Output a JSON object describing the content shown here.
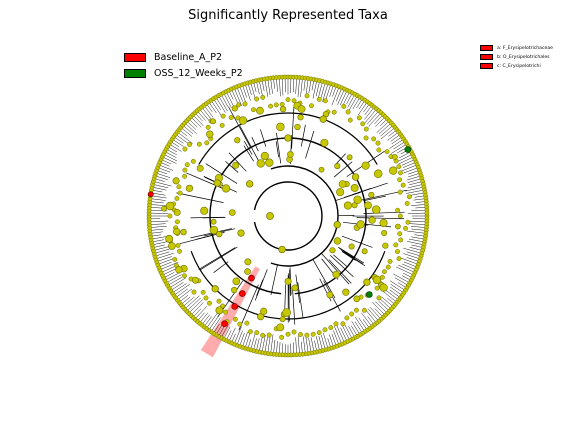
{
  "title": "Significantly Represented Taxa",
  "legend": [
    {
      "label": "Baseline_A_P2",
      "color": "#ff0000"
    },
    {
      "label": "OSS_12_Weeks_P2",
      "color": "#008000"
    }
  ],
  "clade_legend": [
    {
      "label": "a: F_Erysipelotrichaceae",
      "color": "#ff0000"
    },
    {
      "label": "b: O_Erysipelotrichales",
      "color": "#ff0000"
    },
    {
      "label": "c: C_Erysipelotrichi",
      "color": "#ff0000"
    }
  ],
  "colors": {
    "node": "#c8c800",
    "node_stroke": "#6e6e00",
    "line": "#000000",
    "highlight": "#ff0000",
    "highlight2": "#008000"
  }
}
